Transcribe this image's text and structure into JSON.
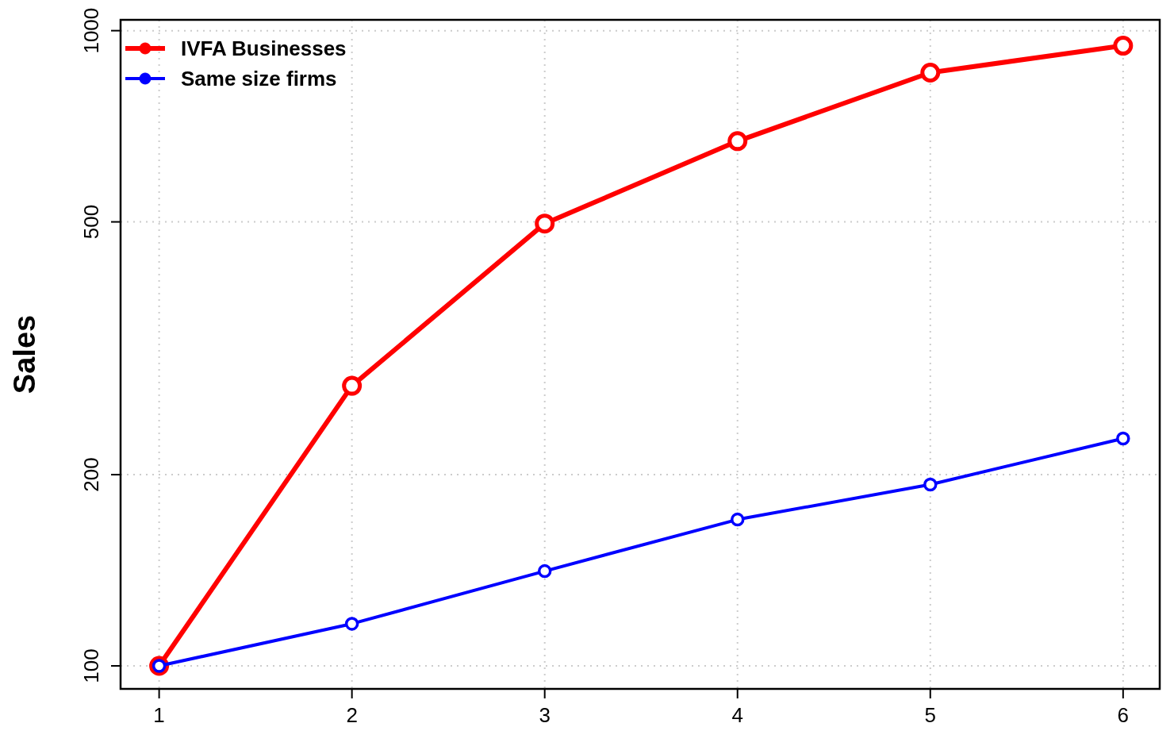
{
  "chart_data": {
    "type": "line",
    "ylabel": "Sales",
    "x": [
      1,
      2,
      3,
      4,
      5,
      6
    ],
    "xlim": [
      0.8,
      6.19
    ],
    "xticks": [
      1,
      2,
      3,
      4,
      5,
      6
    ],
    "ylim": [
      92,
      1040
    ],
    "yticks": [
      100,
      200,
      500,
      1000
    ],
    "log": "y",
    "grid": true,
    "legend": "top left",
    "marker": "circle",
    "line_style": "solid",
    "series": [
      {
        "name": "IVFA Businesses",
        "color": "#ff0000",
        "values": [
          100,
          276,
          497,
          670,
          859,
          947
        ]
      },
      {
        "name": "Same size firms",
        "color": "#0000ff",
        "values": [
          100,
          116.5,
          141,
          170,
          193,
          228
        ]
      }
    ]
  }
}
